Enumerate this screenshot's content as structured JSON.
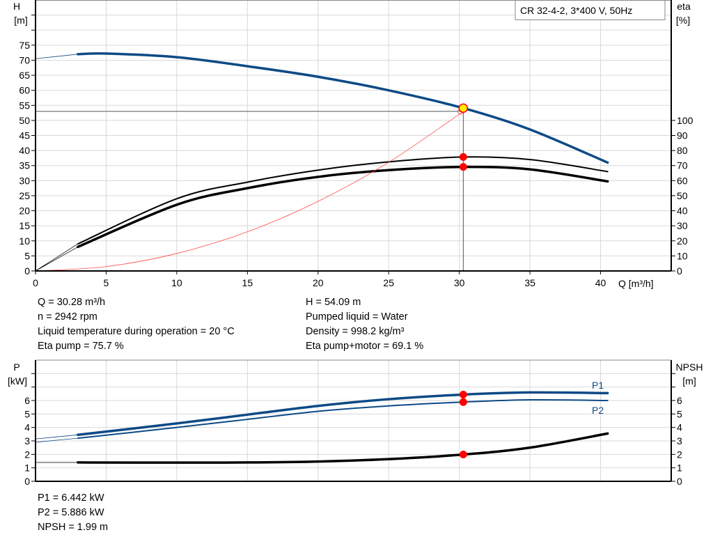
{
  "chart_data": [
    {
      "type": "line",
      "title": "CR 32-4-2, 3*400 V, 50Hz",
      "xlabel": "Q [m³/h]",
      "ylabel": "H\n[m]",
      "ylabel_line1": "H",
      "ylabel_line2": "[m]",
      "y2label_line1": "eta",
      "y2label_line2": "[%]",
      "xlim": [
        0,
        45
      ],
      "ylim": [
        0,
        90
      ],
      "y2lim": [
        0,
        180
      ],
      "xticks": [
        0,
        5,
        10,
        15,
        20,
        25,
        30,
        35,
        40
      ],
      "yticks": [
        0,
        5,
        10,
        15,
        20,
        25,
        30,
        35,
        40,
        45,
        50,
        55,
        60,
        65,
        70,
        75
      ],
      "y2ticks": [
        0,
        10,
        20,
        30,
        40,
        50,
        60,
        70,
        80,
        90,
        100
      ],
      "grid": true,
      "colors": {
        "head": "#0d4a86",
        "eta": "#000000",
        "system": "#ff4a4a",
        "point": "#ff0000",
        "duty_point": "#ffee00"
      },
      "series": [
        {
          "key": "head",
          "axis": "H",
          "x": [
            3,
            5,
            10,
            15,
            20,
            25,
            30.28,
            35,
            40.5
          ],
          "y": [
            72,
            72.2,
            71,
            68,
            64.5,
            60,
            54.09,
            47,
            36
          ],
          "extrapolated": {
            "x": [
              0,
              3
            ],
            "y": [
              70.5,
              72
            ]
          }
        },
        {
          "key": "eta_pump",
          "axis": "eta",
          "x": [
            3,
            10,
            15,
            20,
            25,
            30.28,
            35,
            40.5
          ],
          "y": [
            18,
            48,
            59,
            67,
            72.5,
            75.7,
            74,
            66
          ],
          "extrapolated": {
            "x": [
              0,
              3
            ],
            "y": [
              0,
              18
            ]
          }
        },
        {
          "key": "eta_pump_motor",
          "axis": "eta",
          "x": [
            3,
            10,
            15,
            20,
            25,
            30.28,
            35,
            40.5
          ],
          "y": [
            16,
            44,
            55,
            62.5,
            67,
            69.1,
            67.5,
            59.5
          ],
          "extrapolated": {
            "x": [
              0,
              3
            ],
            "y": [
              0,
              16
            ]
          }
        },
        {
          "key": "system_curve",
          "axis": "H",
          "x": [
            0,
            5,
            10,
            15,
            20,
            25,
            30.28
          ],
          "y": [
            0,
            1.45,
            5.8,
            13,
            23.1,
            36.1,
            53
          ]
        }
      ],
      "duty_point": {
        "Q": 30.28,
        "H": 54.09,
        "eta_pump": 75.7,
        "eta_pump_motor": 69.1
      }
    },
    {
      "type": "line",
      "ylabel_line1": "P",
      "ylabel_line2": "[kW]",
      "y2label_line1": "NPSH",
      "y2label_line2": "[m]",
      "xlim": [
        0,
        45
      ],
      "ylim": [
        0,
        9
      ],
      "y2lim": [
        0,
        9
      ],
      "yticks": [
        0,
        1,
        2,
        3,
        4,
        5,
        6
      ],
      "y2ticks": [
        0,
        1,
        2,
        3,
        4,
        5,
        6
      ],
      "grid": true,
      "colors": {
        "power": "#0d4a86",
        "npsh": "#000000",
        "point": "#ff0000"
      },
      "series": [
        {
          "key": "P1",
          "name": "P1",
          "x": [
            3,
            10,
            15,
            20,
            25,
            30.28,
            35,
            40.5
          ],
          "y": [
            3.45,
            4.3,
            4.95,
            5.6,
            6.1,
            6.442,
            6.6,
            6.55
          ],
          "extrapolated": {
            "x": [
              0,
              3
            ],
            "y": [
              3.15,
              3.45
            ]
          }
        },
        {
          "key": "P2",
          "name": "P2",
          "x": [
            3,
            10,
            15,
            20,
            25,
            30.28,
            35,
            40.5
          ],
          "y": [
            3.2,
            4.0,
            4.6,
            5.2,
            5.6,
            5.886,
            6.05,
            6.0
          ],
          "extrapolated": {
            "x": [
              0,
              3
            ],
            "y": [
              2.9,
              3.2
            ]
          }
        },
        {
          "key": "NPSH",
          "x": [
            3,
            10,
            15,
            20,
            25,
            30.28,
            35,
            40.5
          ],
          "y": [
            1.4,
            1.39,
            1.4,
            1.47,
            1.65,
            1.99,
            2.5,
            3.55
          ],
          "extrapolated": {
            "x": [
              0,
              3
            ],
            "y": [
              1.4,
              1.4
            ]
          }
        }
      ],
      "duty_point": {
        "Q": 30.28,
        "P1": 6.442,
        "P2": 5.886,
        "NPSH": 1.99
      }
    }
  ],
  "info_top_left": [
    "Q = 30.28 m³/h",
    "n = 2942 rpm",
    "Liquid temperature during operation = 20 °C",
    "Eta pump = 75.7 %"
  ],
  "info_top_right": [
    "H = 54.09 m",
    "Pumped liquid = Water",
    "Density = 998.2 kg/m³",
    "Eta pump+motor = 69.1 %"
  ],
  "info_bottom": [
    "P1 = 6.442 kW",
    "P2 = 5.886 kW",
    "NPSH = 1.99 m"
  ]
}
